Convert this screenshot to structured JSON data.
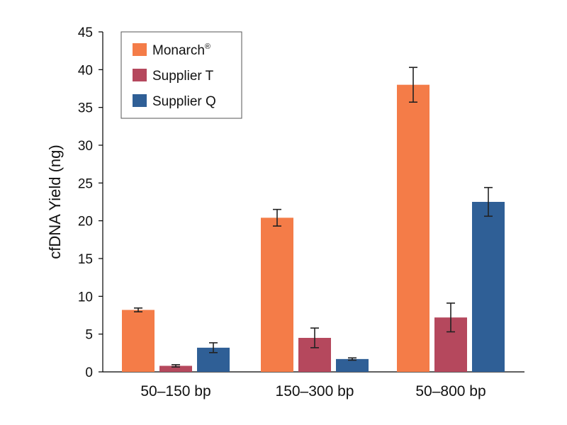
{
  "chart_data": {
    "type": "bar",
    "title": "",
    "xlabel": "",
    "ylabel": "cfDNA Yield (ng)",
    "ylim": [
      0,
      45
    ],
    "yticks": [
      0,
      5,
      10,
      15,
      20,
      25,
      30,
      35,
      40,
      45
    ],
    "categories": [
      "50–150 bp",
      "150–300 bp",
      "50–800 bp"
    ],
    "series": [
      {
        "name": "Monarch",
        "superscript": "®",
        "color": "#F47C48",
        "values": [
          8.2,
          20.4,
          38.0
        ],
        "errors": [
          0.25,
          1.1,
          2.3
        ]
      },
      {
        "name": "Supplier T",
        "color": "#B5485D",
        "values": [
          0.8,
          4.5,
          7.2
        ],
        "errors": [
          0.15,
          1.3,
          1.9
        ]
      },
      {
        "name": "Supplier Q",
        "color": "#2F5F96",
        "values": [
          3.2,
          1.7,
          22.5
        ],
        "errors": [
          0.65,
          0.15,
          1.9
        ]
      }
    ],
    "legend_position": "top-left"
  }
}
